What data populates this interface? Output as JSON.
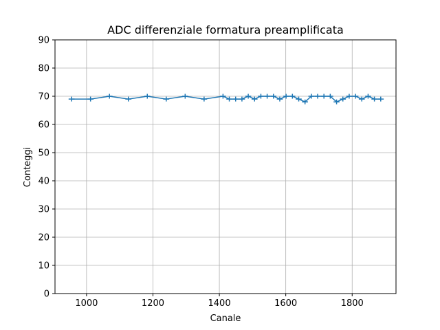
{
  "chart_data": {
    "type": "line",
    "title": "ADC differenziale formatura preamplificata",
    "xlabel": "Canale",
    "ylabel": "Conteggi",
    "xlim": [
      905,
      1932
    ],
    "ylim": [
      0,
      90
    ],
    "xticks": [
      1000,
      1200,
      1400,
      1600,
      1800
    ],
    "yticks": [
      0,
      10,
      20,
      30,
      40,
      50,
      60,
      70,
      80,
      90
    ],
    "grid": true,
    "color": "#1f77b4",
    "series": [
      {
        "x": [
          955,
          1012,
          1069,
          1126,
          1183,
          1240,
          1297,
          1354,
          1411,
          1430,
          1449,
          1468,
          1487,
          1506,
          1525,
          1544,
          1563,
          1582,
          1601,
          1620,
          1639,
          1658,
          1677,
          1696,
          1715,
          1734,
          1753,
          1772,
          1791,
          1810,
          1829,
          1848,
          1867,
          1886
        ],
        "y": [
          69,
          69,
          70,
          69,
          70,
          69,
          70,
          69,
          70,
          69,
          69,
          69,
          70,
          69,
          70,
          70,
          70,
          69,
          70,
          70,
          69,
          68,
          70,
          70,
          70,
          70,
          68,
          69,
          70,
          70,
          69,
          70,
          69,
          69
        ],
        "xerr": 9
      }
    ]
  }
}
